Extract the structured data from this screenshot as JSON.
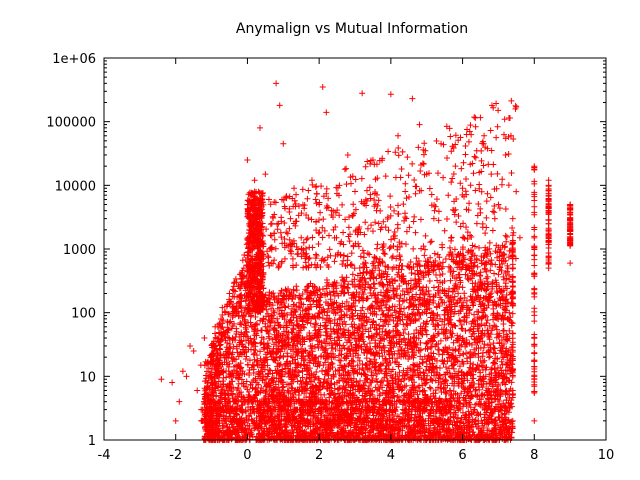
{
  "chart_data": {
    "type": "scatter",
    "title": "Anymalign vs Mutual Information",
    "xlabel": "",
    "ylabel": "",
    "xlim": [
      -4,
      10
    ],
    "ylim": [
      1,
      1000000
    ],
    "y_scale": "log",
    "grid": false,
    "legend": "none",
    "marker": "plus",
    "color": "#ff0000",
    "x_ticks": [
      -4,
      -2,
      0,
      2,
      4,
      6,
      8,
      10
    ],
    "x_tick_labels": [
      "-4",
      "-2",
      "0",
      "2",
      "4",
      "6",
      "8",
      "10"
    ],
    "y_ticks": [
      1,
      10,
      100,
      1000,
      10000,
      100000,
      1000000
    ],
    "y_tick_labels": [
      "1",
      "10",
      "100",
      "1000",
      "10000",
      "100000",
      "1e+06"
    ],
    "series": [
      {
        "points": [
          [
            -2.4,
            9
          ],
          [
            -2.1,
            8
          ],
          [
            -2.0,
            2
          ],
          [
            -1.9,
            4
          ],
          [
            -1.8,
            12
          ],
          [
            -1.7,
            10
          ],
          [
            -1.6,
            30
          ],
          [
            -1.5,
            25
          ],
          [
            -1.4,
            6
          ],
          [
            -1.3,
            15
          ],
          [
            -1.2,
            40
          ],
          [
            -1.1,
            8
          ],
          [
            -1.0,
            20
          ],
          [
            -0.9,
            60
          ],
          [
            -0.8,
            35
          ],
          [
            -0.7,
            120
          ],
          [
            -0.6,
            50
          ],
          [
            -0.5,
            200
          ],
          [
            -0.4,
            90
          ],
          [
            -0.3,
            300
          ],
          [
            -0.2,
            150
          ],
          [
            -0.1,
            500
          ],
          [
            0.0,
            800
          ],
          [
            0.05,
            2000
          ],
          [
            0.1,
            3000
          ],
          [
            0.15,
            5000
          ],
          [
            0.2,
            8000
          ],
          [
            0.25,
            4000
          ],
          [
            0.3,
            2500
          ],
          [
            0.0,
            25000
          ],
          [
            0.2,
            12000
          ],
          [
            0.35,
            80000
          ],
          [
            0.5,
            15000
          ],
          [
            0.6,
            6000
          ],
          [
            0.8,
            400000
          ],
          [
            0.9,
            180000
          ],
          [
            1.0,
            45000
          ],
          [
            1.2,
            3000
          ],
          [
            1.3,
            9000
          ],
          [
            1.5,
            1500
          ],
          [
            1.7,
            700
          ],
          [
            1.8,
            12000
          ],
          [
            2.0,
            5000
          ],
          [
            2.1,
            350000
          ],
          [
            2.2,
            140000
          ],
          [
            2.4,
            2000
          ],
          [
            2.6,
            800
          ],
          [
            2.8,
            30000
          ],
          [
            3.0,
            8000
          ],
          [
            3.2,
            280000
          ],
          [
            3.3,
            600
          ],
          [
            3.5,
            25000
          ],
          [
            3.6,
            4000
          ],
          [
            3.8,
            1200
          ],
          [
            4.0,
            270000
          ],
          [
            4.2,
            60000
          ],
          [
            4.4,
            8000
          ],
          [
            4.6,
            230000
          ],
          [
            4.8,
            90000
          ],
          [
            5.0,
            15000
          ],
          [
            5.2,
            3000
          ],
          [
            5.4,
            45000
          ],
          [
            5.6,
            7000
          ],
          [
            5.8,
            20000
          ],
          [
            6.0,
            9000
          ],
          [
            6.2,
            70000
          ],
          [
            6.4,
            2500
          ],
          [
            6.6,
            60000
          ],
          [
            6.8,
            15000
          ],
          [
            7.0,
            5000
          ],
          [
            7.2,
            30000
          ],
          [
            7.4,
            3000
          ],
          [
            7.6,
            1500
          ],
          [
            8.0,
            18000
          ],
          [
            8.0,
            800
          ],
          [
            8.0,
            400
          ],
          [
            8.0,
            2
          ],
          [
            8.0,
            9
          ],
          [
            8.4,
            12000
          ],
          [
            8.4,
            6000
          ],
          [
            8.4,
            2000
          ],
          [
            8.4,
            500
          ],
          [
            9.0,
            5000
          ],
          [
            9.0,
            2000
          ],
          [
            9.0,
            600
          ],
          [
            0.5,
            60
          ],
          [
            1.0,
            30
          ],
          [
            1.5,
            80
          ],
          [
            2.0,
            50
          ],
          [
            2.5,
            100
          ],
          [
            3.0,
            40
          ],
          [
            3.5,
            70
          ],
          [
            4.0,
            90
          ],
          [
            4.5,
            120
          ],
          [
            5.0,
            150
          ],
          [
            5.5,
            200
          ],
          [
            6.0,
            250
          ],
          [
            6.5,
            300
          ],
          [
            7.0,
            400
          ],
          [
            7.4,
            6
          ],
          [
            7.4,
            2
          ],
          [
            0.3,
            10
          ],
          [
            0.8,
            5
          ],
          [
            1.4,
            3
          ],
          [
            2.2,
            8
          ],
          [
            3.1,
            4
          ],
          [
            4.3,
            6
          ],
          [
            5.1,
            9
          ],
          [
            6.1,
            5
          ],
          [
            6.9,
            3
          ]
        ]
      }
    ]
  }
}
